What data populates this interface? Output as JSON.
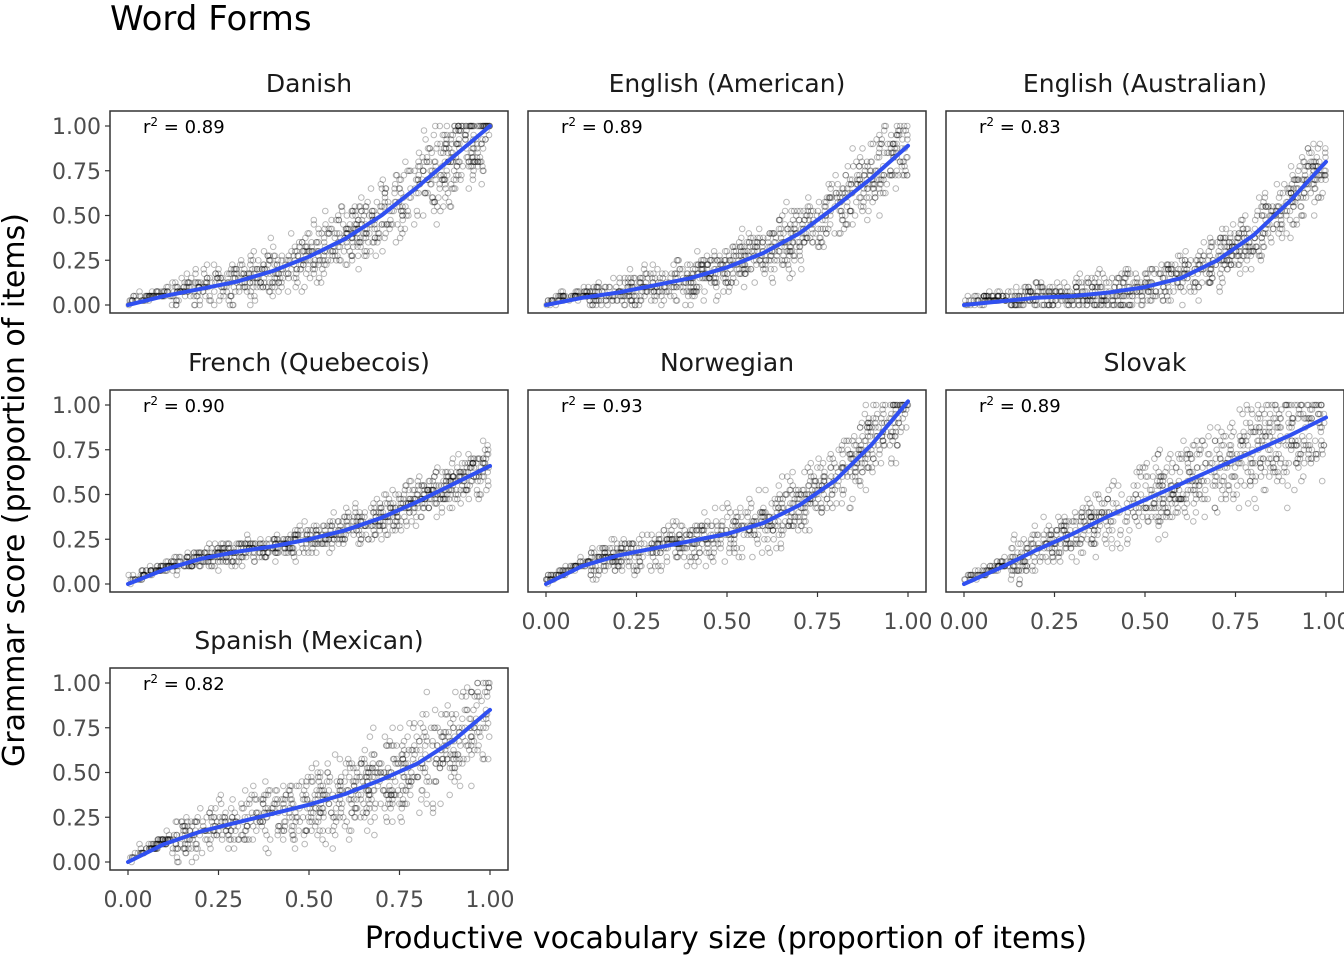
{
  "chart_data": {
    "type": "scatter",
    "title": "Word Forms",
    "xlabel": "Productive vocabulary size (proportion of items)",
    "ylabel": "Grammar score (proportion of items)",
    "xlim": [
      0,
      1
    ],
    "ylim": [
      0,
      1
    ],
    "x_ticks": [
      "0.00",
      "0.25",
      "0.50",
      "0.75",
      "1.00"
    ],
    "y_ticks": [
      "0.00",
      "0.25",
      "0.50",
      "0.75",
      "1.00"
    ],
    "r2_prefix": "r",
    "r2_exponent": "2",
    "colors": {
      "points": "#000000",
      "fit": "#3050f0",
      "panel_border": "#333333"
    },
    "panels": [
      {
        "name": "Danish",
        "r2": "0.89",
        "fit": [
          [
            0.0,
            0.0
          ],
          [
            0.1,
            0.05
          ],
          [
            0.2,
            0.09
          ],
          [
            0.3,
            0.13
          ],
          [
            0.4,
            0.19
          ],
          [
            0.5,
            0.27
          ],
          [
            0.6,
            0.37
          ],
          [
            0.7,
            0.5
          ],
          [
            0.8,
            0.66
          ],
          [
            0.9,
            0.83
          ],
          [
            1.0,
            1.0
          ]
        ],
        "spread": 0.16
      },
      {
        "name": "English (American)",
        "r2": "0.89",
        "fit": [
          [
            0.0,
            0.0
          ],
          [
            0.1,
            0.04
          ],
          [
            0.2,
            0.07
          ],
          [
            0.3,
            0.11
          ],
          [
            0.4,
            0.15
          ],
          [
            0.5,
            0.21
          ],
          [
            0.6,
            0.29
          ],
          [
            0.7,
            0.4
          ],
          [
            0.8,
            0.55
          ],
          [
            0.9,
            0.71
          ],
          [
            1.0,
            0.89
          ]
        ],
        "spread": 0.14
      },
      {
        "name": "English (Australian)",
        "r2": "0.83",
        "fit": [
          [
            0.0,
            0.0
          ],
          [
            0.1,
            0.02
          ],
          [
            0.2,
            0.04
          ],
          [
            0.3,
            0.05
          ],
          [
            0.4,
            0.07
          ],
          [
            0.5,
            0.1
          ],
          [
            0.6,
            0.15
          ],
          [
            0.7,
            0.25
          ],
          [
            0.8,
            0.39
          ],
          [
            0.9,
            0.58
          ],
          [
            1.0,
            0.8
          ]
        ],
        "spread": 0.12
      },
      {
        "name": "French (Quebecois)",
        "r2": "0.90",
        "fit": [
          [
            0.0,
            0.0
          ],
          [
            0.1,
            0.08
          ],
          [
            0.2,
            0.14
          ],
          [
            0.3,
            0.18
          ],
          [
            0.4,
            0.21
          ],
          [
            0.5,
            0.25
          ],
          [
            0.6,
            0.3
          ],
          [
            0.7,
            0.37
          ],
          [
            0.8,
            0.46
          ],
          [
            0.9,
            0.56
          ],
          [
            1.0,
            0.66
          ]
        ],
        "spread": 0.09
      },
      {
        "name": "Norwegian",
        "r2": "0.93",
        "fit": [
          [
            0.0,
            0.0
          ],
          [
            0.1,
            0.1
          ],
          [
            0.2,
            0.16
          ],
          [
            0.3,
            0.2
          ],
          [
            0.4,
            0.24
          ],
          [
            0.5,
            0.28
          ],
          [
            0.6,
            0.34
          ],
          [
            0.7,
            0.44
          ],
          [
            0.8,
            0.58
          ],
          [
            0.9,
            0.78
          ],
          [
            1.0,
            1.02
          ]
        ],
        "spread": 0.14
      },
      {
        "name": "Slovak",
        "r2": "0.89",
        "fit": [
          [
            0.0,
            0.0
          ],
          [
            0.1,
            0.09
          ],
          [
            0.2,
            0.19
          ],
          [
            0.3,
            0.28
          ],
          [
            0.4,
            0.38
          ],
          [
            0.5,
            0.47
          ],
          [
            0.6,
            0.56
          ],
          [
            0.7,
            0.65
          ],
          [
            0.8,
            0.74
          ],
          [
            0.9,
            0.83
          ],
          [
            1.0,
            0.93
          ]
        ],
        "spread": 0.2
      },
      {
        "name": "Spanish (Mexican)",
        "r2": "0.82",
        "fit": [
          [
            0.0,
            0.0
          ],
          [
            0.1,
            0.1
          ],
          [
            0.2,
            0.17
          ],
          [
            0.3,
            0.22
          ],
          [
            0.4,
            0.27
          ],
          [
            0.5,
            0.32
          ],
          [
            0.6,
            0.38
          ],
          [
            0.7,
            0.46
          ],
          [
            0.8,
            0.55
          ],
          [
            0.9,
            0.68
          ],
          [
            1.0,
            0.85
          ]
        ],
        "spread": 0.2
      }
    ]
  }
}
